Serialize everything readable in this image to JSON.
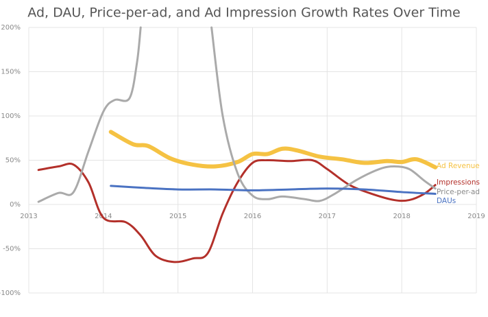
{
  "chart_data": {
    "type": "line",
    "title": "Ad, DAU, Price-per-ad, and Ad Impression Growth Rates Over Time",
    "xlim": [
      2013,
      2019
    ],
    "xticks": [
      2013,
      2014,
      2015,
      2016,
      2017,
      2018,
      2019
    ],
    "ylim": [
      -100,
      200
    ],
    "yticks": [
      {
        "value": -100,
        "label": "-100%"
      },
      {
        "value": -50,
        "label": "-50%"
      },
      {
        "value": 0,
        "label": "0%"
      },
      {
        "value": 50,
        "label": "50%"
      },
      {
        "value": 100,
        "label": "100%"
      },
      {
        "value": 150,
        "label": "150%"
      },
      {
        "value": 200,
        "label": "200%"
      }
    ],
    "grid": true,
    "series": [
      {
        "name": "Ad Revenue",
        "color": "#f5c243",
        "width": 6,
        "x": [
          2014.1,
          2014.4,
          2014.6,
          2014.9,
          2015.2,
          2015.5,
          2015.8,
          2016.0,
          2016.2,
          2016.4,
          2016.6,
          2016.9,
          2017.2,
          2017.5,
          2017.8,
          2018.0,
          2018.2,
          2018.45
        ],
        "values": [
          82,
          68,
          66,
          52,
          45,
          43,
          48,
          57,
          57,
          63,
          61,
          54,
          51,
          47,
          49,
          48,
          51,
          42
        ]
      },
      {
        "name": "Impressions",
        "color": "#b3302a",
        "width": 3,
        "x": [
          2013.13,
          2013.4,
          2013.6,
          2013.8,
          2014.0,
          2014.3,
          2014.5,
          2014.7,
          2014.95,
          2015.2,
          2015.4,
          2015.6,
          2015.8,
          2016.0,
          2016.2,
          2016.5,
          2016.8,
          2017.0,
          2017.3,
          2017.6,
          2017.9,
          2018.1,
          2018.3,
          2018.45
        ],
        "values": [
          39,
          43,
          45,
          25,
          -15,
          -20,
          -35,
          -58,
          -65,
          -61,
          -55,
          -10,
          25,
          47,
          50,
          49,
          50,
          40,
          22,
          12,
          5,
          5,
          12,
          22
        ]
      },
      {
        "name": "Price-per-ad",
        "color": "#aaaaaa",
        "width": 3,
        "x": [
          2013.13,
          2013.4,
          2013.6,
          2013.8,
          2014.0,
          2014.15,
          2014.35,
          2014.45,
          2014.5,
          2015.0,
          2015.45,
          2015.6,
          2015.8,
          2016.0,
          2016.2,
          2016.4,
          2016.7,
          2016.9,
          2017.1,
          2017.4,
          2017.7,
          2017.9,
          2018.1,
          2018.3,
          2018.45
        ],
        "values": [
          3,
          13,
          14,
          60,
          105,
          118,
          120,
          160,
          200,
          null,
          200,
          100,
          35,
          10,
          6,
          9,
          6,
          4,
          12,
          28,
          40,
          43,
          40,
          27,
          18
        ]
      },
      {
        "name": "DAUs",
        "color": "#4a72c2",
        "width": 3,
        "x": [
          2014.1,
          2014.5,
          2015.0,
          2015.5,
          2016.0,
          2016.5,
          2017.0,
          2017.5,
          2018.0,
          2018.45
        ],
        "values": [
          21,
          19,
          17,
          17,
          16,
          17,
          18,
          17,
          14,
          12
        ]
      }
    ]
  }
}
